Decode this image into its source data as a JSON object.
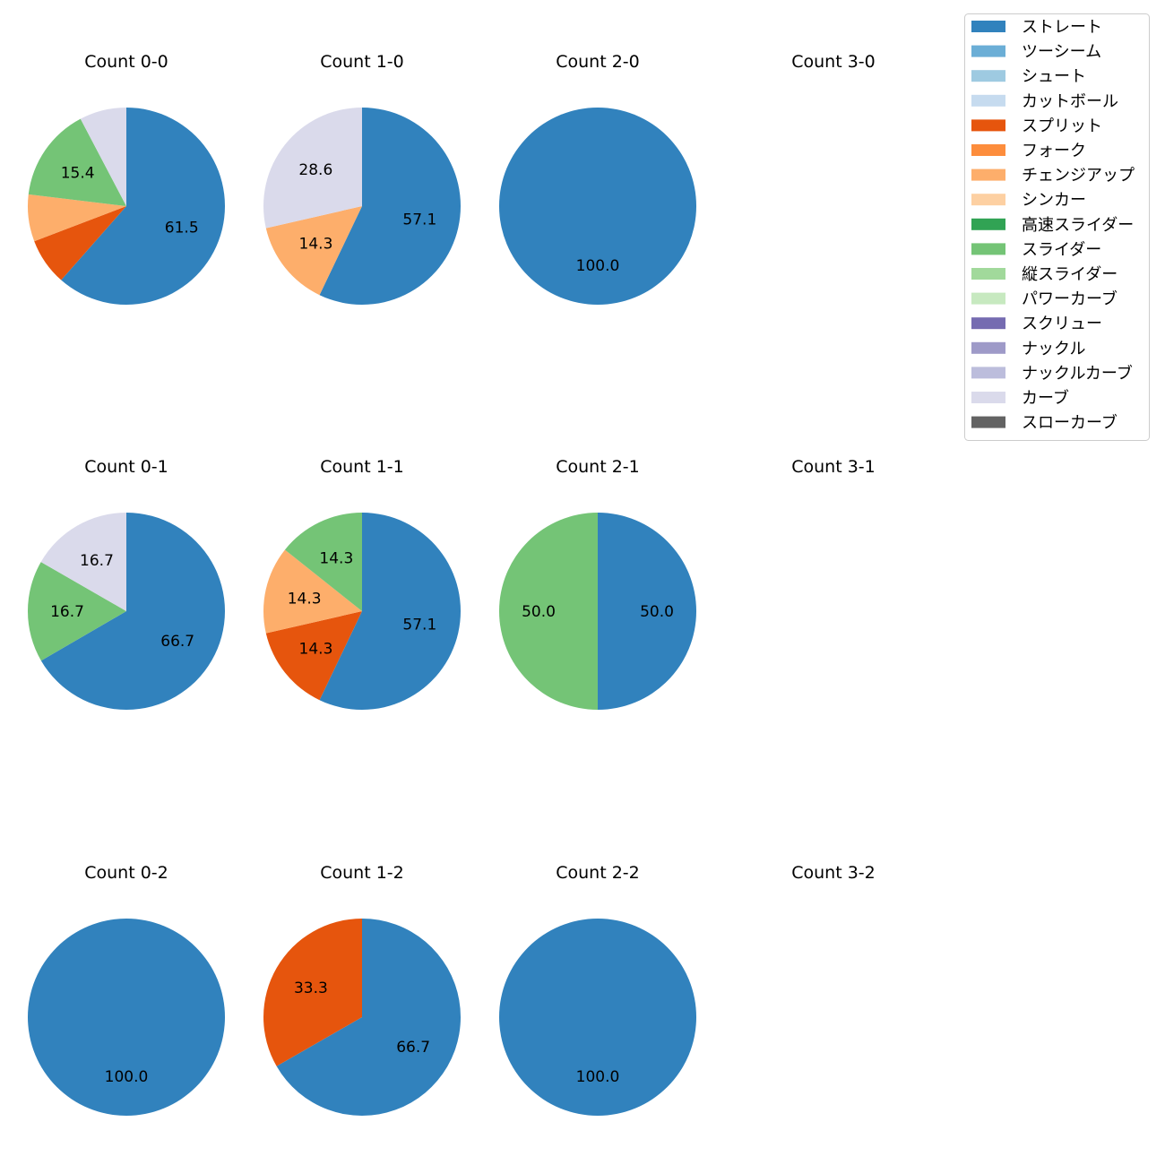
{
  "chart_data": {
    "type": "pie",
    "legend_placement": "top-right",
    "legend": [
      {
        "name": "ストレート",
        "color": "#3182bd"
      },
      {
        "name": "ツーシーム",
        "color": "#6baed6"
      },
      {
        "name": "シュート",
        "color": "#9ecae1"
      },
      {
        "name": "カットボール",
        "color": "#c6dbef"
      },
      {
        "name": "スプリット",
        "color": "#e6550d"
      },
      {
        "name": "フォーク",
        "color": "#fd8d3c"
      },
      {
        "name": "チェンジアップ",
        "color": "#fdae6b"
      },
      {
        "name": "シンカー",
        "color": "#fdd0a2"
      },
      {
        "name": "高速スライダー",
        "color": "#31a354"
      },
      {
        "name": "スライダー",
        "color": "#74c476"
      },
      {
        "name": "縦スライダー",
        "color": "#a1d99b"
      },
      {
        "name": "パワーカーブ",
        "color": "#c7e9c0"
      },
      {
        "name": "スクリュー",
        "color": "#756bb1"
      },
      {
        "name": "ナックル",
        "color": "#9e9ac8"
      },
      {
        "name": "ナックルカーブ",
        "color": "#bcbddc"
      },
      {
        "name": "カーブ",
        "color": "#dadaeb"
      },
      {
        "name": "スローカーブ",
        "color": "#636363"
      }
    ],
    "charts": [
      {
        "title": "Count 0-0",
        "slices": [
          {
            "pitch": "ストレート",
            "value": 61.5
          },
          {
            "pitch": "スプリット",
            "value": 7.7
          },
          {
            "pitch": "チェンジアップ",
            "value": 7.7
          },
          {
            "pitch": "スライダー",
            "value": 15.4
          },
          {
            "pitch": "カーブ",
            "value": 7.7
          }
        ]
      },
      {
        "title": "Count 1-0",
        "slices": [
          {
            "pitch": "ストレート",
            "value": 57.1
          },
          {
            "pitch": "チェンジアップ",
            "value": 14.3
          },
          {
            "pitch": "カーブ",
            "value": 28.6
          }
        ]
      },
      {
        "title": "Count 2-0",
        "slices": [
          {
            "pitch": "ストレート",
            "value": 100.0
          }
        ]
      },
      {
        "title": "Count 3-0",
        "slices": []
      },
      {
        "title": "Count 0-1",
        "slices": [
          {
            "pitch": "ストレート",
            "value": 66.7
          },
          {
            "pitch": "スライダー",
            "value": 16.7
          },
          {
            "pitch": "カーブ",
            "value": 16.7
          }
        ]
      },
      {
        "title": "Count 1-1",
        "slices": [
          {
            "pitch": "ストレート",
            "value": 57.1
          },
          {
            "pitch": "スプリット",
            "value": 14.3
          },
          {
            "pitch": "チェンジアップ",
            "value": 14.3
          },
          {
            "pitch": "スライダー",
            "value": 14.3
          }
        ]
      },
      {
        "title": "Count 2-1",
        "slices": [
          {
            "pitch": "ストレート",
            "value": 50.0
          },
          {
            "pitch": "スライダー",
            "value": 50.0
          }
        ]
      },
      {
        "title": "Count 3-1",
        "slices": []
      },
      {
        "title": "Count 0-2",
        "slices": [
          {
            "pitch": "ストレート",
            "value": 100.0
          }
        ]
      },
      {
        "title": "Count 1-2",
        "slices": [
          {
            "pitch": "ストレート",
            "value": 66.7
          },
          {
            "pitch": "スプリット",
            "value": 33.3
          }
        ]
      },
      {
        "title": "Count 2-2",
        "slices": [
          {
            "pitch": "ストレート",
            "value": 100.0
          }
        ]
      },
      {
        "title": "Count 3-2",
        "slices": []
      }
    ]
  }
}
